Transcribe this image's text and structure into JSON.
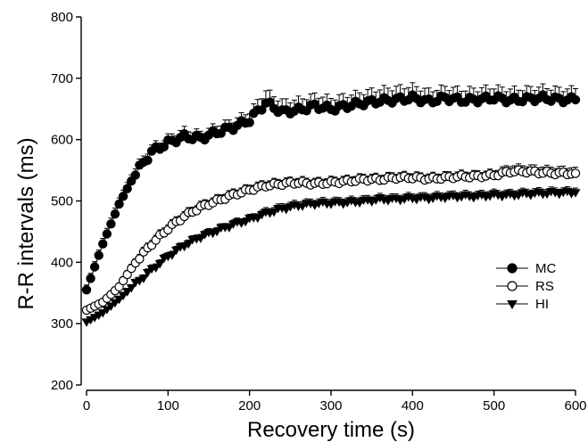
{
  "chart_data": {
    "type": "scatter",
    "xlabel": "Recovery time (s)",
    "ylabel": "R-R intervals (ms)",
    "xlim": [
      0,
      600
    ],
    "ylim": [
      200,
      800
    ],
    "x_ticks": [
      0,
      100,
      200,
      300,
      400,
      500,
      600
    ],
    "y_ticks": [
      200,
      300,
      400,
      500,
      600,
      700,
      800
    ],
    "x_tick_labels": [
      "0",
      "100",
      "200",
      "300",
      "400",
      "500",
      "600"
    ],
    "y_tick_labels": [
      "200",
      "300",
      "400",
      "500",
      "600",
      "700",
      "800"
    ],
    "grid": false,
    "legend_position": "right",
    "error_bars": "upper",
    "series": [
      {
        "name": "MC",
        "marker": "filled-circle",
        "x": [
          0,
          20,
          40,
          60,
          80,
          100,
          120,
          140,
          160,
          180,
          200,
          220,
          240,
          260,
          280,
          300,
          320,
          340,
          360,
          380,
          400,
          420,
          440,
          460,
          480,
          500,
          520,
          540,
          560,
          580,
          600
        ],
        "y": [
          355,
          430,
          495,
          545,
          580,
          595,
          605,
          602,
          612,
          620,
          632,
          660,
          645,
          648,
          655,
          650,
          655,
          660,
          663,
          665,
          668,
          662,
          668,
          664,
          665,
          668,
          664,
          666,
          668,
          665,
          665
        ],
        "err": [
          8,
          9,
          10,
          10,
          10,
          10,
          12,
          10,
          12,
          12,
          14,
          20,
          18,
          18,
          18,
          18,
          18,
          18,
          20,
          20,
          20,
          18,
          18,
          18,
          18,
          18,
          18,
          18,
          18,
          18,
          18
        ]
      },
      {
        "name": "RS",
        "marker": "open-circle",
        "x": [
          0,
          20,
          40,
          60,
          80,
          100,
          120,
          140,
          160,
          180,
          200,
          220,
          240,
          260,
          280,
          300,
          320,
          340,
          360,
          380,
          400,
          420,
          440,
          460,
          480,
          500,
          520,
          540,
          560,
          580,
          600
        ],
        "y": [
          322,
          335,
          360,
          400,
          430,
          455,
          475,
          490,
          500,
          510,
          518,
          525,
          528,
          530,
          528,
          530,
          532,
          535,
          535,
          538,
          538,
          536,
          538,
          540,
          540,
          542,
          548,
          548,
          546,
          545,
          545
        ],
        "err": [
          5,
          5,
          6,
          7,
          8,
          8,
          8,
          8,
          8,
          8,
          8,
          8,
          8,
          8,
          8,
          8,
          8,
          8,
          8,
          8,
          8,
          8,
          8,
          8,
          8,
          8,
          10,
          10,
          10,
          10,
          10
        ]
      },
      {
        "name": "HI",
        "marker": "filled-triangle-down",
        "x": [
          0,
          20,
          40,
          60,
          80,
          100,
          120,
          140,
          160,
          180,
          200,
          220,
          240,
          260,
          280,
          300,
          320,
          340,
          360,
          380,
          400,
          420,
          440,
          460,
          480,
          500,
          520,
          540,
          560,
          580,
          600
        ],
        "y": [
          303,
          318,
          340,
          365,
          388,
          410,
          428,
          442,
          452,
          462,
          470,
          480,
          488,
          493,
          496,
          497,
          498,
          500,
          503,
          503,
          505,
          505,
          507,
          508,
          508,
          510,
          510,
          512,
          513,
          514,
          514
        ],
        "err": [
          4,
          4,
          5,
          5,
          6,
          6,
          6,
          6,
          6,
          6,
          6,
          7,
          7,
          7,
          7,
          7,
          7,
          7,
          7,
          7,
          7,
          7,
          7,
          7,
          7,
          7,
          7,
          7,
          7,
          7,
          7
        ]
      }
    ]
  }
}
